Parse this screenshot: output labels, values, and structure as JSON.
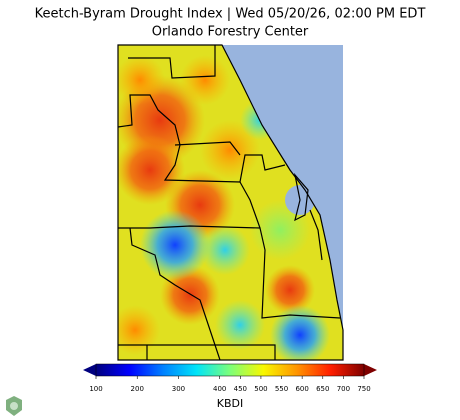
{
  "header": {
    "title": "Keetch-Byram Drought Index | Wed 05/20/26, 02:00 PM EDT",
    "subtitle": "Orlando Forestry Center"
  },
  "colorbar": {
    "label": "KBDI",
    "lim": [
      100,
      750
    ],
    "ticks": [
      100,
      200,
      300,
      400,
      450,
      500,
      550,
      600,
      650,
      700,
      750
    ],
    "colors": [
      "#00007f",
      "#0000ff",
      "#0080ff",
      "#00e4f8",
      "#7cff7a",
      "#f8f800",
      "#ff9400",
      "#ff1e00",
      "#7f0000"
    ]
  }
}
